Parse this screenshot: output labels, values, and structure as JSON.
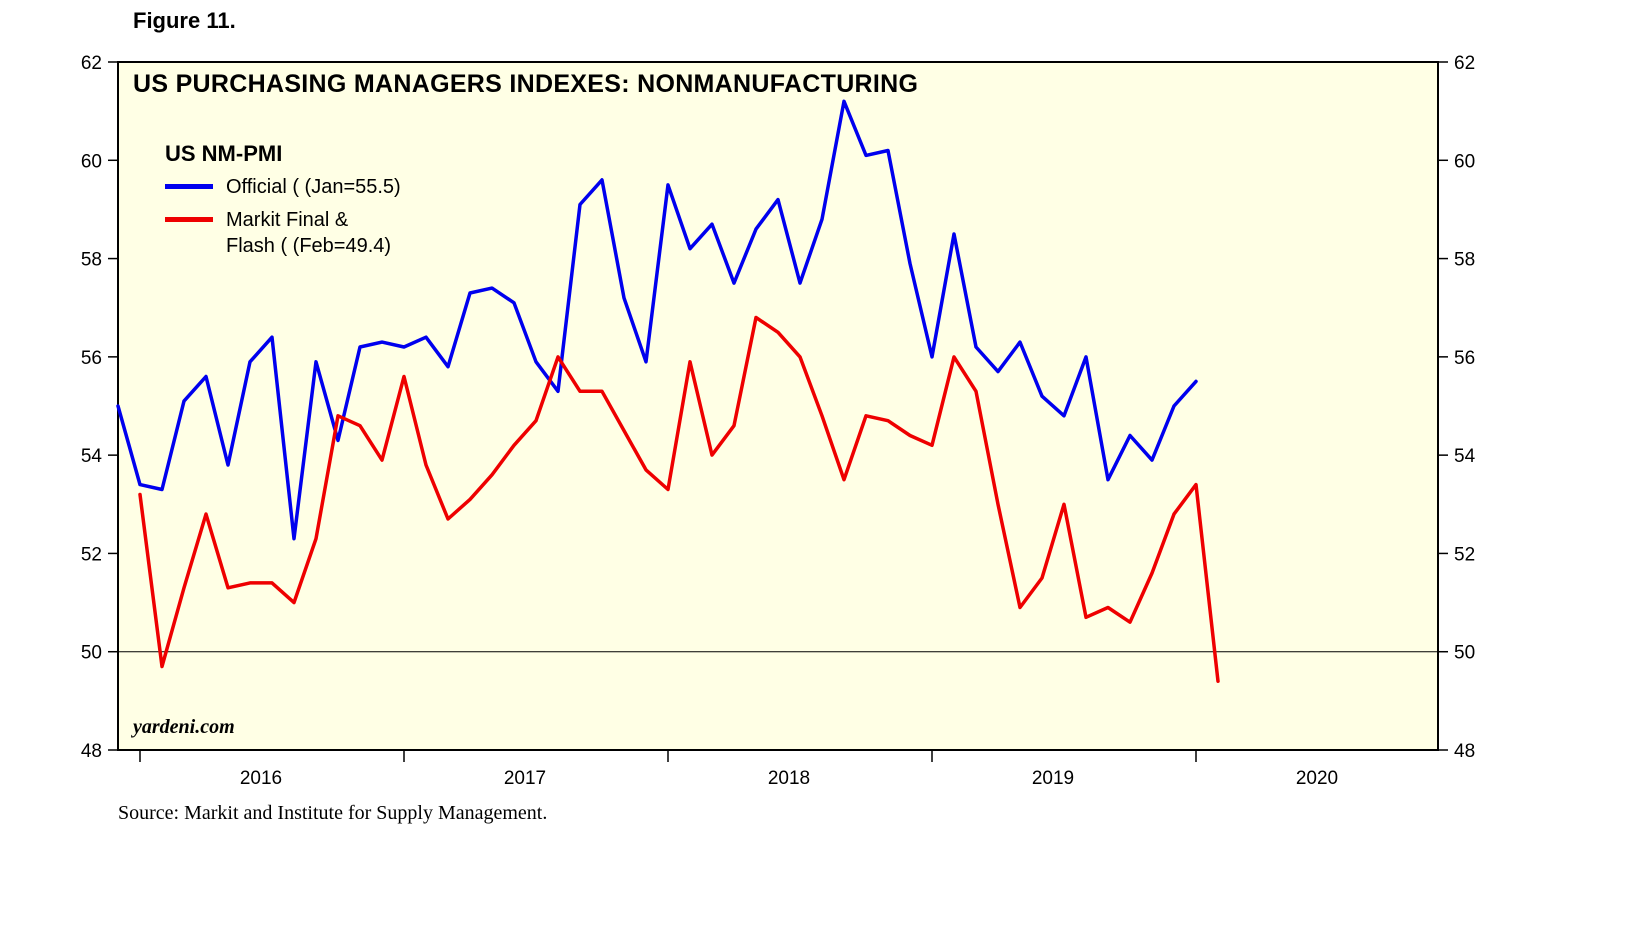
{
  "figure_label": "Figure 11.",
  "watermark": "yardeni.com",
  "source": "Source: Markit and Institute for Supply Management.",
  "colors": {
    "official_blue": "#0000EE",
    "markit_red": "#EE0000",
    "plot_background": "#FFFFE5",
    "axis": "#000000"
  },
  "legend": {
    "title": "US NM-PMI",
    "items": [
      {
        "id": "official",
        "label": "Official ( (Jan=55.5)",
        "color": "#0000EE"
      },
      {
        "id": "markit",
        "label": "Markit Final &",
        "label2": "Flash ( (Feb=49.4)",
        "color": "#EE0000"
      }
    ]
  },
  "chart_data": {
    "type": "line",
    "title": "US PURCHASING MANAGERS INDEXES: NONMANUFACTURING",
    "xlabel": "",
    "ylabel": "",
    "ylim": [
      48,
      62
    ],
    "yticks": [
      48,
      50,
      52,
      54,
      56,
      58,
      60,
      62
    ],
    "yticks_both_sides": true,
    "reference_line": 50,
    "grid": false,
    "legend_position": "top-left",
    "x_axis": {
      "unit": "month",
      "month0": "2015-12",
      "start_month": 0,
      "end_month": 60,
      "year_ticks": [
        1,
        13,
        25,
        37,
        49
      ],
      "year_labels": [
        {
          "label": "2016",
          "center_month": 6.5
        },
        {
          "label": "2017",
          "center_month": 18.5
        },
        {
          "label": "2018",
          "center_month": 30.5
        },
        {
          "label": "2019",
          "center_month": 42.5
        },
        {
          "label": "2020",
          "center_month": 54.5
        }
      ]
    },
    "series": [
      {
        "id": "official",
        "name": "US NM-PMI Official (ISM), Jan 2020 = 55.5",
        "color": "#0000EE",
        "start": "2015-12",
        "start_month": 0,
        "frequency": "monthly",
        "values": [
          55.0,
          53.4,
          53.3,
          55.1,
          55.6,
          53.8,
          55.9,
          56.4,
          52.3,
          55.9,
          54.3,
          56.2,
          56.3,
          56.2,
          56.4,
          55.8,
          57.3,
          57.4,
          57.1,
          55.9,
          55.3,
          59.1,
          59.6,
          57.2,
          55.9,
          59.5,
          58.2,
          58.7,
          57.5,
          58.6,
          59.2,
          57.5,
          58.8,
          61.2,
          60.1,
          60.2,
          57.9,
          56.0,
          58.5,
          56.2,
          55.7,
          56.3,
          55.2,
          54.8,
          56.0,
          53.5,
          54.4,
          53.9,
          55.0,
          55.5
        ]
      },
      {
        "id": "markit",
        "name": "US Services PMI Markit Final & Flash, Feb 2020 flash = 49.4",
        "color": "#EE0000",
        "start": "2016-01",
        "start_month": 1,
        "frequency": "monthly",
        "values": [
          53.2,
          49.7,
          51.3,
          52.8,
          51.3,
          51.4,
          51.4,
          51.0,
          52.3,
          54.8,
          54.6,
          53.9,
          55.6,
          53.8,
          52.7,
          53.1,
          53.6,
          54.2,
          54.7,
          56.0,
          55.3,
          55.3,
          54.5,
          53.7,
          53.3,
          55.9,
          54.0,
          54.6,
          56.8,
          56.5,
          56.0,
          54.8,
          53.5,
          54.8,
          54.7,
          54.4,
          54.2,
          56.0,
          55.3,
          53.0,
          50.9,
          51.5,
          53.0,
          50.7,
          50.9,
          50.6,
          51.6,
          52.8,
          53.4,
          49.4
        ]
      }
    ]
  }
}
